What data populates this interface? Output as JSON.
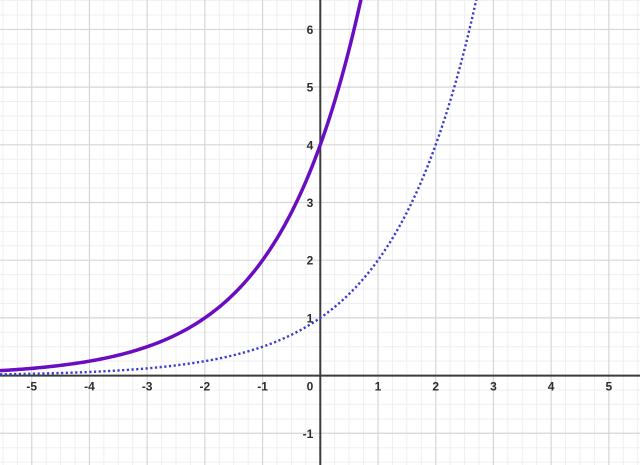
{
  "page": {
    "background_color": "#ffffff"
  },
  "chart_data": {
    "type": "line",
    "title": "",
    "xlabel": "",
    "ylabel": "",
    "description": "Two exponential growth curves plotted on a white coordinate grid",
    "x_axis": {
      "min": -5.55,
      "max": 5.54,
      "major_step": 1,
      "minor_step": 0.25,
      "tick_values": [
        -5,
        -4,
        -3,
        -2,
        -1,
        1,
        2,
        3,
        4,
        5
      ],
      "tick_labels": [
        "-5",
        "-4",
        "-3",
        "-2",
        "-1",
        "1",
        "2",
        "3",
        "4",
        "5"
      ]
    },
    "y_axis": {
      "min": -1.55,
      "max": 6.51,
      "major_step": 1,
      "minor_step": 0.25,
      "tick_values": [
        -1,
        1,
        2,
        3,
        4,
        5,
        6
      ],
      "tick_labels": [
        "-1",
        "1",
        "2",
        "3",
        "4",
        "5",
        "6"
      ]
    },
    "origin_label": "0",
    "grid": {
      "show": true,
      "major_color": "#d6d6d6",
      "minor_color": "#efeff1",
      "major_width": 1.2,
      "minor_width": 1
    },
    "axes_style": {
      "color": "#3b3b3b",
      "width": 2,
      "label_color": "#2d2d2d"
    },
    "series": [
      {
        "name": "solid-purple-exponential",
        "formula": "y = 4 * 2^x",
        "coefficient": 4,
        "base": 2,
        "style": "solid",
        "color": "#6A0DC2",
        "width": 3.5,
        "key_points": [
          [
            -5,
            0.125
          ],
          [
            -4,
            0.25
          ],
          [
            -3,
            0.5
          ],
          [
            -2,
            1
          ],
          [
            -1,
            2
          ],
          [
            0,
            4
          ],
          [
            0.5,
            5.657
          ],
          [
            0.7,
            6.5
          ]
        ]
      },
      {
        "name": "dotted-blue-exponential",
        "formula": "y = 2^x",
        "coefficient": 1,
        "base": 2,
        "style": "dotted",
        "color": "#3B3BCE",
        "width": 2.4,
        "key_points": [
          [
            -5,
            0.031
          ],
          [
            -4,
            0.0625
          ],
          [
            -3,
            0.125
          ],
          [
            -2,
            0.25
          ],
          [
            -1,
            0.5
          ],
          [
            0,
            1
          ],
          [
            1,
            2
          ],
          [
            2,
            4
          ],
          [
            2.7,
            6.5
          ]
        ]
      }
    ]
  }
}
